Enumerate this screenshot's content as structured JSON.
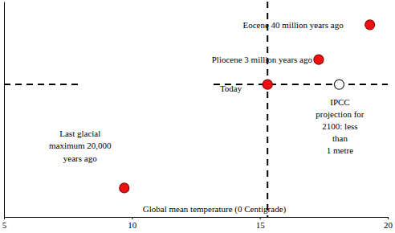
{
  "chart_data": {
    "type": "scatter",
    "x_label": "Global mean temperature (0 Centigrade)",
    "x": [
      9.7,
      15.3,
      17.3,
      19.3,
      18.1
    ],
    "values": [
      -125,
      0,
      30,
      72,
      0
    ],
    "annotations": [
      [
        "Last glacial",
        "maximum 20,000",
        "years ago"
      ],
      [
        "Today"
      ],
      [
        "Pliocene 3 million years ago"
      ],
      [
        "Eocene 40 million years ago"
      ],
      [
        "IPCC",
        "projection for",
        "2100: less",
        "than",
        "1 metre"
      ]
    ],
    "colors": [
      "#ee1111",
      "#ee1111",
      "#ee1111",
      "#ee1111",
      "#ffffff"
    ],
    "marker": "circle",
    "xlim": [
      5,
      20
    ],
    "xticks": [
      5,
      10,
      15,
      20
    ],
    "ylim": [
      -160,
      100
    ],
    "tick_labels": "x",
    "grid": false
  }
}
